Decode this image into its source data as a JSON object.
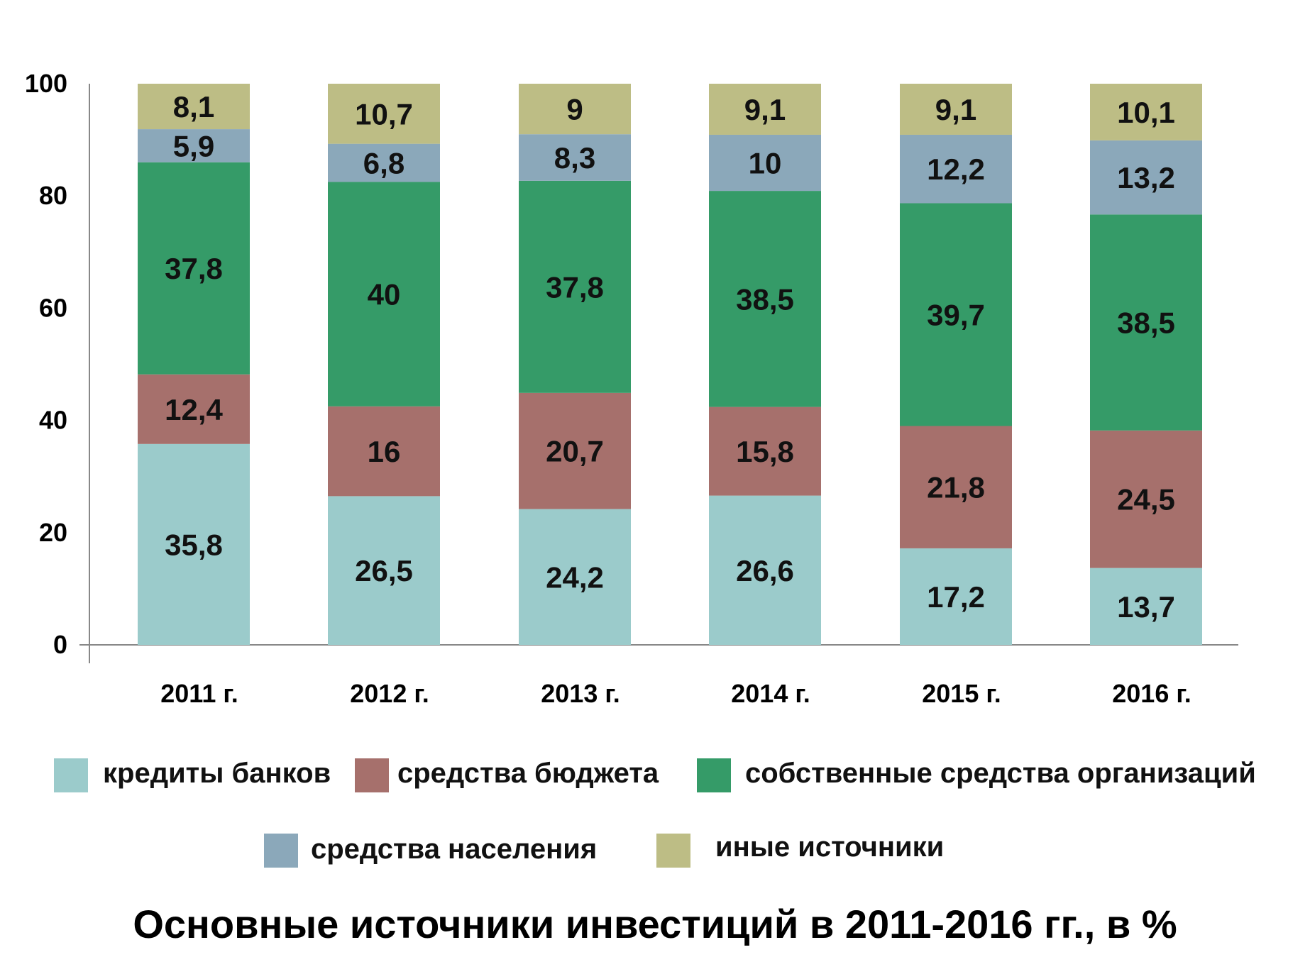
{
  "chart_data": {
    "type": "bar",
    "stacked": true,
    "title": "Основные источники инвестиций в 2011-2016 гг., в %",
    "categories": [
      "2011 г.",
      "2012 г.",
      "2013 г.",
      "2014 г.",
      "2015 г.",
      "2016 г."
    ],
    "series": [
      {
        "name": "кредиты банков",
        "color": "#9BCBCB",
        "values": [
          35.8,
          26.5,
          24.2,
          26.6,
          17.2,
          13.7
        ],
        "labels": [
          "35,8",
          "26,5",
          "24,2",
          "26,6",
          "17,2",
          "13,7"
        ]
      },
      {
        "name": "средства бюджета",
        "color": "#A6706C",
        "values": [
          12.4,
          16,
          20.7,
          15.8,
          21.8,
          24.5
        ],
        "labels": [
          "12,4",
          "16",
          "20,7",
          "15,8",
          "21,8",
          "24,5"
        ]
      },
      {
        "name": "собственные средства организаций",
        "color": "#359B68",
        "values": [
          37.8,
          40,
          37.8,
          38.5,
          39.7,
          38.5
        ],
        "labels": [
          "37,8",
          "40",
          "37,8",
          "38,5",
          "39,7",
          "38,5"
        ]
      },
      {
        "name": "средства населения",
        "color": "#8BA8BA",
        "values": [
          5.9,
          6.8,
          8.3,
          10,
          12.2,
          13.2
        ],
        "labels": [
          "5,9",
          "6,8",
          "8,3",
          "10",
          "12,2",
          "13,2"
        ]
      },
      {
        "name": "иные источники",
        "color": "#BDBD85",
        "values": [
          8.1,
          10.7,
          9,
          9.1,
          9.1,
          10.1
        ],
        "labels": [
          "8,1",
          "10,7",
          "9",
          "9,1",
          "9,1",
          "10,1"
        ]
      }
    ],
    "ylim": [
      0,
      100
    ],
    "yticks": [
      "0",
      "20",
      "40",
      "60",
      "80",
      "100"
    ],
    "grid": false,
    "legend_position": "bottom"
  }
}
